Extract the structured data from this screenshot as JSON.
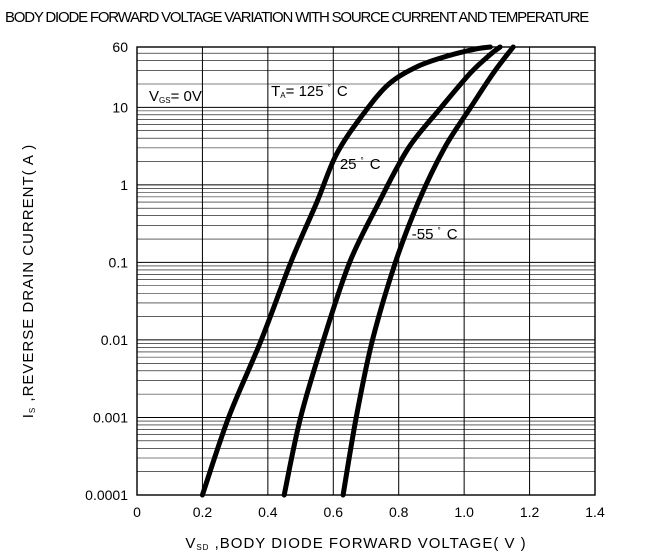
{
  "chart_data": {
    "type": "line",
    "title": "BODY DIODE FORWARD VOLTAGE VARIATION WITH SOURCE CURRENT AND TEMPERATURE",
    "xlabel": {
      "sym": "V",
      "sub": "SD",
      "text": " ,BODY DIODE FORWARD VOLTAGE( V )"
    },
    "ylabel": {
      "sym": "I",
      "sub": "S",
      "text": " ,REVERSE DRAIN CURRENT( A )"
    },
    "xlim": [
      0,
      1.4
    ],
    "ylim": [
      0.0001,
      60
    ],
    "yscale": "log",
    "grid": true,
    "x_ticks": [
      {
        "value": 0,
        "label": "0"
      },
      {
        "value": 0.2,
        "label": "0.2"
      },
      {
        "value": 0.4,
        "label": "0.4"
      },
      {
        "value": 0.6,
        "label": "0.6"
      },
      {
        "value": 0.8,
        "label": "0.8"
      },
      {
        "value": 1.0,
        "label": "1.0"
      },
      {
        "value": 1.2,
        "label": "1.2"
      },
      {
        "value": 1.4,
        "label": "1.4"
      }
    ],
    "y_ticks": [
      {
        "value": 0.0001,
        "label": "0.0001"
      },
      {
        "value": 0.001,
        "label": "0.001"
      },
      {
        "value": 0.01,
        "label": "0.01"
      },
      {
        "value": 0.1,
        "label": "0.1"
      },
      {
        "value": 1,
        "label": "1"
      },
      {
        "value": 10,
        "label": "10"
      },
      {
        "value": 60,
        "label": "60"
      }
    ],
    "condition": {
      "sym": "V",
      "sub": "GS",
      "text": "= 0V"
    },
    "series": [
      {
        "name": "T A = 125° C",
        "label_parts": {
          "sym": "T",
          "sub": "A",
          "text": "= 125",
          "deg": "°",
          "unit": "C"
        },
        "label_at": {
          "x": 0.41,
          "y": 14
        },
        "x": [
          0.2,
          0.28,
          0.38,
          0.47,
          0.55,
          0.61,
          0.69,
          0.77,
          0.86,
          0.95,
          1.04,
          1.08
        ],
        "y": [
          0.0001,
          0.001,
          0.01,
          0.1,
          0.6,
          2.5,
          8,
          20,
          34,
          46,
          57,
          60
        ]
      },
      {
        "name": "25° C",
        "label_parts": {
          "text": "25",
          "deg": "°",
          "unit": "C"
        },
        "label_at": {
          "x": 0.62,
          "y": 1.6
        },
        "x": [
          0.45,
          0.5,
          0.57,
          0.65,
          0.74,
          0.83,
          0.93,
          1.02,
          1.08,
          1.11
        ],
        "y": [
          0.0001,
          0.001,
          0.01,
          0.1,
          0.6,
          3,
          10,
          28,
          48,
          60
        ]
      },
      {
        "name": "-55° C",
        "label_parts": {
          "text": "-55",
          "deg": "°",
          "unit": "C"
        },
        "label_at": {
          "x": 0.84,
          "y": 0.2
        },
        "x": [
          0.63,
          0.67,
          0.72,
          0.79,
          0.86,
          0.94,
          1.02,
          1.09,
          1.15
        ],
        "y": [
          0.0001,
          0.001,
          0.01,
          0.1,
          0.6,
          3,
          10,
          28,
          60
        ]
      }
    ]
  }
}
